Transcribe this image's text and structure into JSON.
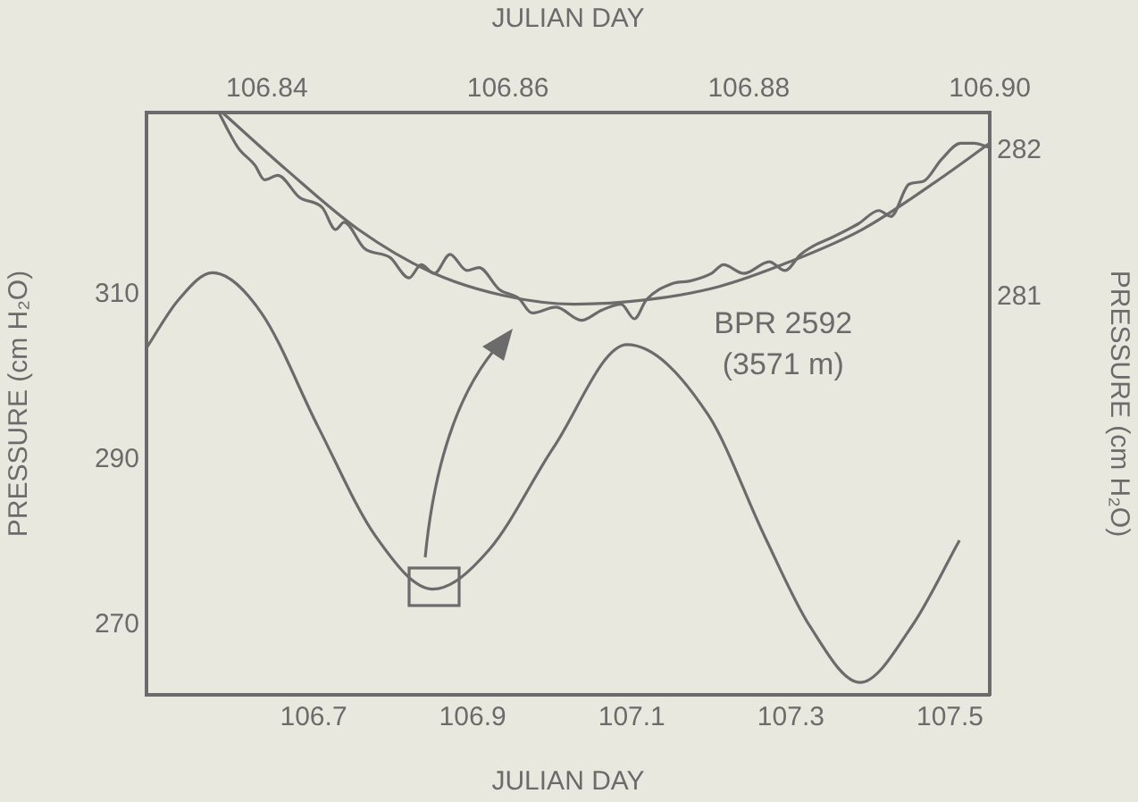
{
  "chart_data": [
    {
      "type": "line",
      "xlabel": "JULIAN DAY",
      "ylabel": "PRESSURE (cm H₂O)",
      "annotations": [
        "BPR 2592",
        "(3571 m)"
      ],
      "xlim": [
        106.49,
        107.55
      ],
      "xticks": [
        106.7,
        106.9,
        107.1,
        107.3,
        107.5
      ],
      "ylim": [
        261.5,
        332
      ],
      "yticks": [
        270,
        290,
        310
      ],
      "grid": false,
      "legend": false,
      "marker": "none",
      "line_style": "solid",
      "series": [
        {
          "color": "#6b6b6b",
          "x": [
            106.49,
            106.53,
            106.573,
            106.634,
            106.706,
            106.778,
            106.85,
            106.921,
            107.002,
            107.094,
            107.196,
            107.267,
            107.324,
            107.387,
            107.452,
            107.512
          ],
          "values": [
            303.5,
            309.3,
            312.6,
            307.8,
            293.9,
            280.7,
            274.3,
            279.1,
            291.5,
            303.9,
            295.4,
            280.7,
            269.8,
            263.0,
            269.8,
            280.2
          ]
        }
      ]
    },
    {
      "type": "line",
      "xlabel": "JULIAN DAY",
      "ylabel": "PRESSURE (cm H₂O)",
      "xlim": [
        106.83,
        106.9
      ],
      "xticks": [
        106.84,
        106.86,
        106.88,
        {
          "value": 106.9,
          "label": "106.90"
        }
      ],
      "ylim": [
        278.28,
        282.26
      ],
      "yticks": [
        281,
        282
      ],
      "grid": false,
      "legend": false,
      "marker": "none",
      "line_style": "solid",
      "series": [
        {
          "color": "#6b6b6b",
          "x": [
            106.836,
            106.8376,
            106.839,
            106.8398,
            106.8409,
            106.8427,
            106.8446,
            106.8457,
            106.8464,
            106.8481,
            106.8502,
            106.8518,
            106.8528,
            106.8539,
            106.8552,
            106.8566,
            106.8576,
            106.8593,
            106.8609,
            106.862,
            106.864,
            106.8661,
            106.8678,
            106.8694,
            106.8705,
            106.8715,
            106.8736,
            106.8752,
            106.8769,
            106.8779,
            106.8796,
            106.8817,
            106.883,
            106.8843,
            106.8854,
            106.887,
            106.8891,
            106.8908,
            106.8918,
            106.8933,
            106.8945,
            106.896,
            106.8976,
            106.8987,
            106.9
          ],
          "values": [
            282.26,
            282.02,
            281.9,
            281.8,
            281.83,
            281.68,
            281.61,
            281.46,
            281.51,
            281.33,
            281.27,
            281.13,
            281.22,
            281.16,
            281.29,
            281.18,
            281.2,
            281.05,
            280.99,
            280.89,
            280.93,
            280.84,
            280.91,
            280.95,
            280.85,
            280.98,
            281.09,
            281.11,
            281.16,
            281.22,
            281.16,
            281.24,
            281.18,
            281.29,
            281.35,
            281.41,
            281.5,
            281.59,
            281.55,
            281.77,
            281.79,
            281.94,
            282.05,
            282.05,
            282.02
          ]
        },
        {
          "color": "#6b6b6b",
          "x": [
            106.8363,
            106.8416,
            106.8476,
            106.8536,
            106.8596,
            106.8655,
            106.8715,
            106.8775,
            106.8834,
            106.8894,
            106.8954,
            106.9
          ],
          "values": [
            282.26,
            281.87,
            281.46,
            281.17,
            281.01,
            280.95,
            280.98,
            281.07,
            281.24,
            281.46,
            281.78,
            282.05
          ]
        }
      ]
    }
  ]
}
